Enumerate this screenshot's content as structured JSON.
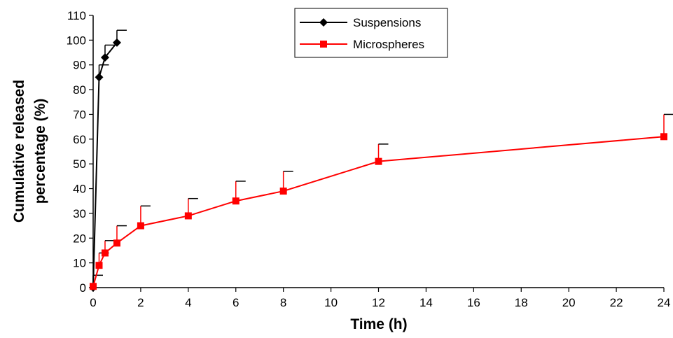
{
  "chart_data": {
    "type": "line",
    "title": "",
    "xlabel": "Time (h)",
    "ylabel_lines": [
      "Cumulative released",
      "percentage (%)"
    ],
    "x_ticks": [
      0,
      2,
      4,
      6,
      8,
      10,
      12,
      14,
      16,
      18,
      20,
      22,
      24
    ],
    "y_ticks": [
      0,
      10,
      20,
      30,
      40,
      50,
      60,
      70,
      80,
      90,
      100,
      110
    ],
    "xlim": [
      0,
      24
    ],
    "ylim": [
      0,
      110
    ],
    "grid": false,
    "legend_position": "top-center",
    "series": [
      {
        "name": "Suspensions",
        "color": "#000000",
        "marker": "diamond",
        "x": [
          0,
          0.25,
          0.5,
          1
        ],
        "y": [
          0,
          85,
          93,
          99
        ],
        "error": [
          5,
          5,
          5,
          5
        ]
      },
      {
        "name": "Microspheres",
        "color": "#ff0000",
        "marker": "square",
        "x": [
          0,
          0.25,
          0.5,
          1,
          2,
          4,
          6,
          8,
          12,
          24
        ],
        "y": [
          0.5,
          9,
          14,
          18,
          25,
          29,
          35,
          39,
          51,
          61
        ],
        "error": [
          0,
          5,
          5,
          7,
          8,
          7,
          8,
          8,
          7,
          9
        ]
      }
    ]
  }
}
